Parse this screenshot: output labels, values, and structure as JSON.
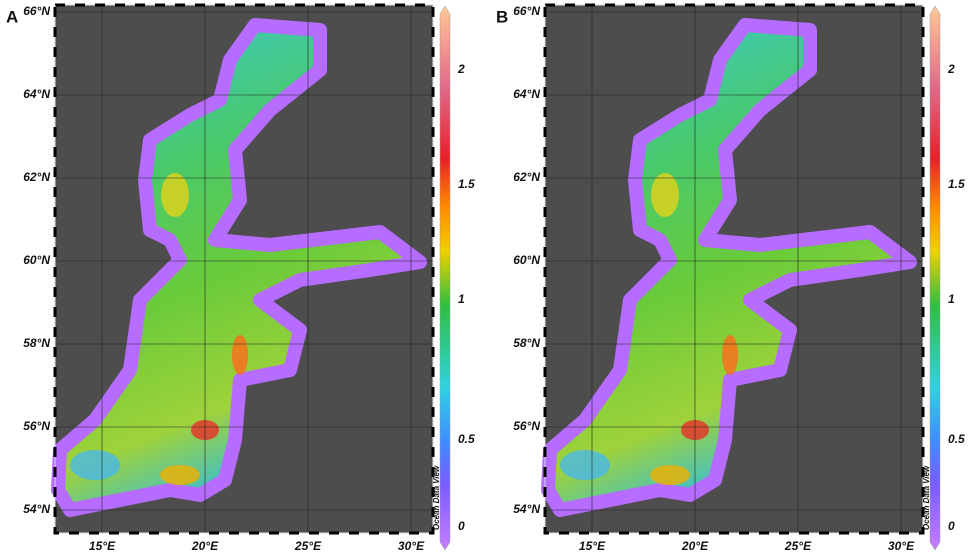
{
  "panels": [
    {
      "label": "A",
      "lat_labels": [
        "66°N",
        "64°N",
        "62°N",
        "60°N",
        "58°N",
        "56°N",
        "54°N"
      ],
      "lon_labels": [
        "15°E",
        "20°E",
        "25°E",
        "30°E"
      ],
      "colorbar_ticks": [
        "2",
        "1.5",
        "1",
        "0.5",
        "0"
      ],
      "watermark": "Ocean Data View"
    },
    {
      "label": "B",
      "lat_labels": [
        "66°N",
        "64°N",
        "62°N",
        "60°N",
        "58°N",
        "56°N",
        "54°N"
      ],
      "lon_labels": [
        "15°E",
        "20°E",
        "25°E",
        "30°E"
      ],
      "colorbar_ticks": [
        "2",
        "1.5",
        "1",
        "0.5",
        "0"
      ],
      "watermark": "Ocean Data View"
    }
  ]
}
